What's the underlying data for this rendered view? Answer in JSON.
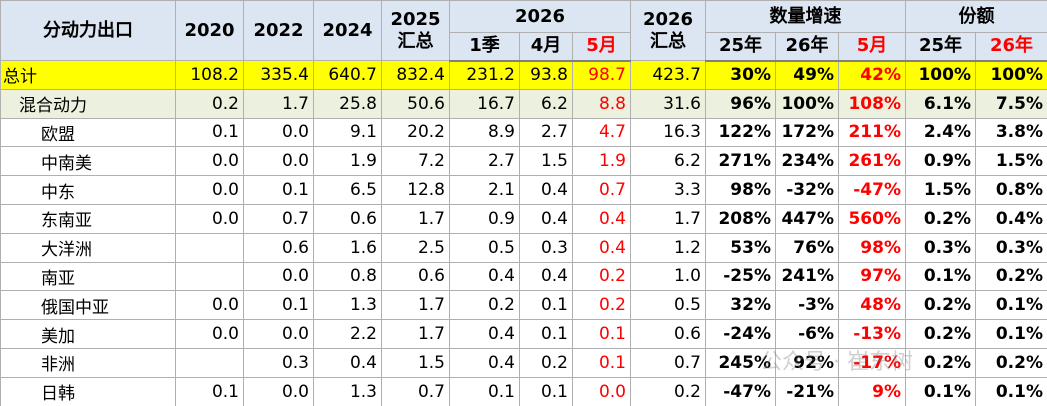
{
  "header_top": [
    {
      "lines": [
        "分动力出口"
      ]
    },
    {
      "lines": [
        "2020"
      ]
    },
    {
      "lines": [
        "2022"
      ]
    },
    {
      "lines": [
        "2024"
      ]
    },
    {
      "lines": [
        "2025",
        "汇总"
      ]
    },
    {
      "lines": [
        "2026"
      ]
    },
    {
      "lines": [
        "2026",
        "汇总"
      ]
    },
    {
      "lines": [
        "数量增速"
      ]
    },
    {
      "lines": [
        "份额"
      ]
    }
  ],
  "header_sub": [
    "1季",
    "4月",
    "5月",
    "25年",
    "26年",
    "5月",
    "25年",
    "26年"
  ],
  "rows": [
    {
      "name": "总计",
      "cells": [
        "108.2",
        "335.4",
        "640.7",
        "832.4",
        "231.2",
        "93.8",
        "98.7",
        "423.7",
        "30%",
        "49%",
        "42%",
        "100%",
        "100%"
      ]
    },
    {
      "name": "混合动力",
      "cells": [
        "0.2",
        "1.7",
        "25.8",
        "50.6",
        "16.7",
        "6.2",
        "8.8",
        "31.6",
        "96%",
        "100%",
        "108%",
        "6.1%",
        "7.5%"
      ]
    },
    {
      "name": "欧盟",
      "cells": [
        "0.1",
        "0.0",
        "9.1",
        "20.2",
        "8.9",
        "2.7",
        "4.7",
        "16.3",
        "122%",
        "172%",
        "211%",
        "2.4%",
        "3.8%"
      ]
    },
    {
      "name": "中南美",
      "cells": [
        "0.0",
        "0.0",
        "1.9",
        "7.2",
        "2.7",
        "1.5",
        "1.9",
        "6.2",
        "271%",
        "234%",
        "261%",
        "0.9%",
        "1.5%"
      ]
    },
    {
      "name": "中东",
      "cells": [
        "0.0",
        "0.1",
        "6.5",
        "12.8",
        "2.1",
        "0.4",
        "0.7",
        "3.3",
        "98%",
        "-32%",
        "-47%",
        "1.5%",
        "0.8%"
      ]
    },
    {
      "name": "东南亚",
      "cells": [
        "0.0",
        "0.7",
        "0.6",
        "1.7",
        "0.9",
        "0.4",
        "0.4",
        "1.7",
        "208%",
        "447%",
        "560%",
        "0.2%",
        "0.4%"
      ]
    },
    {
      "name": "大洋洲",
      "cells": [
        null,
        "0.6",
        "1.6",
        "2.5",
        "0.5",
        "0.3",
        "0.4",
        "1.2",
        "53%",
        "76%",
        "98%",
        "0.3%",
        "0.3%"
      ]
    },
    {
      "name": "南亚",
      "cells": [
        null,
        "0.0",
        "0.8",
        "0.6",
        "0.4",
        "0.4",
        "0.2",
        "1.0",
        "-25%",
        "241%",
        "97%",
        "0.1%",
        "0.2%"
      ]
    },
    {
      "name": "俄国中亚",
      "cells": [
        "0.0",
        "0.1",
        "1.3",
        "1.7",
        "0.2",
        "0.1",
        "0.2",
        "0.5",
        "32%",
        "-3%",
        "48%",
        "0.2%",
        "0.1%"
      ]
    },
    {
      "name": "美加",
      "cells": [
        "0.0",
        "0.0",
        "2.2",
        "1.7",
        "0.4",
        "0.1",
        "0.1",
        "0.6",
        "-24%",
        "-6%",
        "-13%",
        "0.2%",
        "0.1%"
      ]
    },
    {
      "name": "非洲",
      "cells": [
        null,
        "0.3",
        "0.4",
        "1.5",
        "0.4",
        "0.2",
        "0.1",
        "0.7",
        "245%",
        "92%",
        "-17%",
        "0.2%",
        "0.2%"
      ]
    },
    {
      "name": "日韩",
      "cells": [
        "0.1",
        "0.0",
        "1.3",
        "0.7",
        "0.1",
        "0.1",
        "0.0",
        "0.2",
        "-47%",
        "-21%",
        "9%",
        "0.1%",
        "0.1%"
      ]
    }
  ],
  "watermark": "公众号 · 崔东树"
}
